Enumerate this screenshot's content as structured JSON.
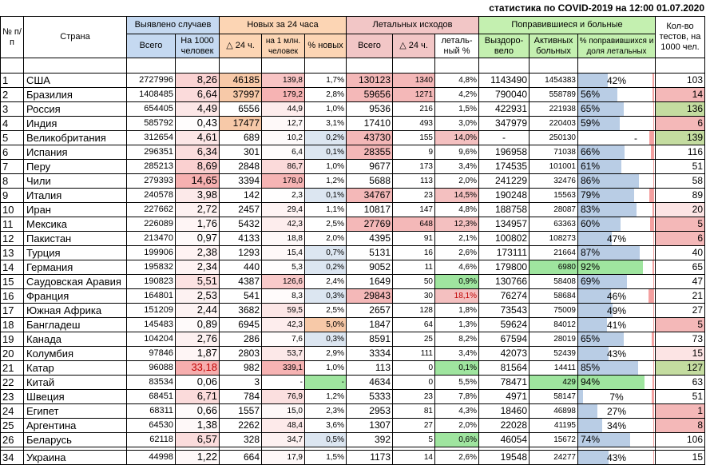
{
  "title": "статистика по COVID-2019 на 12:00 01.07.2020",
  "headers": {
    "num": "№ п/п",
    "country": "Страна",
    "detected": "Выявлено случаев",
    "new24": "Новых за 24 часа",
    "deaths": "Летальных исходов",
    "recovered_sick": "Поправившиеся и больные",
    "tests": "Кол-во тестов, на 1000 чел.",
    "total": "Всего",
    "per1000": "На 1000 человек",
    "d24": "△ 24 ч.",
    "per1m": "на 1 млн. человек",
    "pct_new": "% новых",
    "deaths_total": "Всего",
    "deaths_d24": "△ 24 ч.",
    "lethal_pct": "леталь-ный %",
    "recovered": "Выздоро-вело",
    "active": "Активных больных",
    "pct_recovered": "% поправившихся и доля летальных"
  },
  "rows": [
    {
      "n": "1",
      "country": "США",
      "total": "2727996",
      "per1000": "8,26",
      "d24": "46185",
      "per1m": "139,8",
      "pnew": "1,7%",
      "dtotal": "130123",
      "dd24": "1340",
      "lethal": "4,8%",
      "rec": "1143490",
      "active": "1454383",
      "prec": "42%",
      "prec_v": 0.42,
      "leth_v": 0.048,
      "tests": "103",
      "per1000_v": 0.56,
      "per1m_v": 0.41,
      "d24_v": 1.0,
      "tests_c": ""
    },
    {
      "n": "2",
      "country": "Бразилия",
      "total": "1408485",
      "per1000": "6,64",
      "d24": "37997",
      "per1m": "179,2",
      "pnew": "2,8%",
      "dtotal": "59656",
      "dd24": "1271",
      "lethal": "4,2%",
      "rec": "790040",
      "active": "558789",
      "prec": "56%",
      "prec_v": 0.56,
      "leth_v": 0.042,
      "tests": "14",
      "per1000_v": 0.45,
      "per1m_v": 0.53,
      "d24_v": 0.82,
      "tests_c": "#f4b8b8"
    },
    {
      "n": "3",
      "country": "Россия",
      "total": "654405",
      "per1000": "4,49",
      "d24": "6556",
      "per1m": "44,9",
      "pnew": "1,0%",
      "dtotal": "9536",
      "dd24": "216",
      "lethal": "1,5%",
      "rec": "422931",
      "active": "221938",
      "prec": "65%",
      "prec_v": 0.65,
      "leth_v": 0.015,
      "tests": "136",
      "per1000_v": 0.31,
      "per1m_v": 0.13,
      "d24_v": 0.0,
      "tests_c": "#c4dca0"
    },
    {
      "n": "4",
      "country": "Индия",
      "total": "585792",
      "per1000": "0,43",
      "d24": "17477",
      "per1m": "12,7",
      "pnew": "3,1%",
      "dtotal": "17410",
      "dd24": "493",
      "lethal": "3,0%",
      "rec": "347979",
      "active": "220403",
      "prec": "59%",
      "prec_v": 0.59,
      "leth_v": 0.03,
      "tests": "6",
      "per1000_v": 0.03,
      "per1m_v": 0.04,
      "d24_v": 0.38,
      "tests_c": "#f4b8b8"
    },
    {
      "n": "5",
      "country": "Великобритания",
      "total": "312654",
      "per1000": "4,61",
      "d24": "689",
      "per1m": "10,2",
      "pnew": "0,2%",
      "dtotal": "43730",
      "dd24": "155",
      "lethal": "14,0%",
      "rec": "-",
      "active": "250130",
      "prec": "-",
      "prec_v": 0.0,
      "leth_v": 0.14,
      "tests": "139",
      "per1000_v": 0.31,
      "per1m_v": 0.03,
      "d24_v": 0.0,
      "tests_c": "#c4dca0"
    },
    {
      "n": "6",
      "country": "Испания",
      "total": "296351",
      "per1000": "6,34",
      "d24": "301",
      "per1m": "6,4",
      "pnew": "0,1%",
      "dtotal": "28355",
      "dd24": "9",
      "lethal": "9,6%",
      "rec": "196958",
      "active": "71038",
      "prec": "66%",
      "prec_v": 0.66,
      "leth_v": 0.096,
      "tests": "116",
      "per1000_v": 0.43,
      "per1m_v": 0.02,
      "d24_v": 0.0,
      "tests_c": ""
    },
    {
      "n": "7",
      "country": "Перу",
      "total": "285213",
      "per1000": "8,69",
      "d24": "2848",
      "per1m": "86,7",
      "pnew": "1,0%",
      "dtotal": "9677",
      "dd24": "173",
      "lethal": "3,4%",
      "rec": "174535",
      "active": "101001",
      "prec": "61%",
      "prec_v": 0.61,
      "leth_v": 0.034,
      "tests": "51",
      "per1000_v": 0.59,
      "per1m_v": 0.26,
      "d24_v": 0.0,
      "tests_c": ""
    },
    {
      "n": "8",
      "country": "Чили",
      "total": "279393",
      "per1000": "14,65",
      "d24": "3394",
      "per1m": "178,0",
      "pnew": "1,2%",
      "dtotal": "5688",
      "dd24": "113",
      "lethal": "2,0%",
      "rec": "241229",
      "active": "32476",
      "prec": "86%",
      "prec_v": 0.86,
      "leth_v": 0.02,
      "tests": "58",
      "per1000_v": 1.0,
      "per1m_v": 0.53,
      "d24_v": 0.0,
      "tests_c": ""
    },
    {
      "n": "9",
      "country": "Италия",
      "total": "240578",
      "per1000": "3,98",
      "d24": "142",
      "per1m": "2,3",
      "pnew": "0,1%",
      "dtotal": "34767",
      "dd24": "23",
      "lethal": "14,5%",
      "rec": "190248",
      "active": "15563",
      "prec": "79%",
      "prec_v": 0.79,
      "leth_v": 0.145,
      "tests": "89",
      "per1000_v": 0.27,
      "per1m_v": 0.01,
      "d24_v": 0.0,
      "tests_c": ""
    },
    {
      "n": "10",
      "country": "Иран",
      "total": "227662",
      "per1000": "2,72",
      "d24": "2457",
      "per1m": "29,4",
      "pnew": "1,1%",
      "dtotal": "10817",
      "dd24": "147",
      "lethal": "4,8%",
      "rec": "188758",
      "active": "28087",
      "prec": "83%",
      "prec_v": 0.83,
      "leth_v": 0.048,
      "tests": "20",
      "per1000_v": 0.19,
      "per1m_v": 0.09,
      "d24_v": 0.0,
      "tests_c": "#fce4e4"
    },
    {
      "n": "11",
      "country": "Мексика",
      "total": "226089",
      "per1000": "1,76",
      "d24": "5432",
      "per1m": "42,3",
      "pnew": "2,5%",
      "dtotal": "27769",
      "dd24": "648",
      "lethal": "12,3%",
      "rec": "134957",
      "active": "63363",
      "prec": "60%",
      "prec_v": 0.6,
      "leth_v": 0.123,
      "tests": "5",
      "per1000_v": 0.12,
      "per1m_v": 0.13,
      "d24_v": 0.0,
      "tests_c": "#f4b8b8"
    },
    {
      "n": "12",
      "country": "Пакистан",
      "total": "213470",
      "per1000": "0,97",
      "d24": "4133",
      "per1m": "18,8",
      "pnew": "2,0%",
      "dtotal": "4395",
      "dd24": "91",
      "lethal": "2,1%",
      "rec": "100802",
      "active": "108273",
      "prec": "47%",
      "prec_v": 0.47,
      "leth_v": 0.021,
      "tests": "6",
      "per1000_v": 0.07,
      "per1m_v": 0.06,
      "d24_v": 0.0,
      "tests_c": "#f4b8b8"
    },
    {
      "n": "13",
      "country": "Турция",
      "total": "199906",
      "per1000": "2,38",
      "d24": "1293",
      "per1m": "15,4",
      "pnew": "0,7%",
      "dtotal": "5131",
      "dd24": "16",
      "lethal": "2,6%",
      "rec": "173111",
      "active": "21664",
      "prec": "87%",
      "prec_v": 0.87,
      "leth_v": 0.026,
      "tests": "40",
      "per1000_v": 0.16,
      "per1m_v": 0.05,
      "d24_v": 0.0,
      "tests_c": ""
    },
    {
      "n": "14",
      "country": "Германия",
      "total": "195832",
      "per1000": "2,34",
      "d24": "440",
      "per1m": "5,3",
      "pnew": "0,2%",
      "dtotal": "9052",
      "dd24": "11",
      "lethal": "4,6%",
      "rec": "179800",
      "active": "6980",
      "prec": "92%",
      "prec_v": 0.92,
      "leth_v": 0.046,
      "tests": "65",
      "per1000_v": 0.16,
      "per1m_v": 0.02,
      "d24_v": 0.0,
      "tests_c": ""
    },
    {
      "n": "15",
      "country": "Саудовская Аравия",
      "total": "190823",
      "per1000": "5,51",
      "d24": "4387",
      "per1m": "126,6",
      "pnew": "2,4%",
      "dtotal": "1649",
      "dd24": "50",
      "lethal": "0,9%",
      "rec": "130766",
      "active": "58408",
      "prec": "69%",
      "prec_v": 0.69,
      "leth_v": 0.009,
      "tests": "47",
      "per1000_v": 0.38,
      "per1m_v": 0.37,
      "d24_v": 0.0,
      "tests_c": ""
    },
    {
      "n": "16",
      "country": "Франция",
      "total": "164801",
      "per1000": "2,53",
      "d24": "541",
      "per1m": "8,3",
      "pnew": "0,3%",
      "dtotal": "29843",
      "dd24": "30",
      "lethal": "18,1%",
      "rec": "76274",
      "active": "58684",
      "prec": "46%",
      "prec_v": 0.46,
      "leth_v": 0.181,
      "tests": "21",
      "per1000_v": 0.17,
      "per1m_v": 0.02,
      "d24_v": 0.0,
      "tests_c": ""
    },
    {
      "n": "17",
      "country": "Южная Африка",
      "total": "151209",
      "per1000": "2,44",
      "d24": "3682",
      "per1m": "59,5",
      "pnew": "2,5%",
      "dtotal": "2657",
      "dd24": "128",
      "lethal": "1,8%",
      "rec": "73543",
      "active": "75009",
      "prec": "49%",
      "prec_v": 0.49,
      "leth_v": 0.018,
      "tests": "27",
      "per1000_v": 0.17,
      "per1m_v": 0.18,
      "d24_v": 0.0,
      "tests_c": ""
    },
    {
      "n": "18",
      "country": "Бангладеш",
      "total": "145483",
      "per1000": "0,89",
      "d24": "6945",
      "per1m": "42,3",
      "pnew": "5,0%",
      "dtotal": "1847",
      "dd24": "64",
      "lethal": "1,3%",
      "rec": "59624",
      "active": "84012",
      "prec": "41%",
      "prec_v": 0.41,
      "leth_v": 0.013,
      "tests": "5",
      "per1000_v": 0.06,
      "per1m_v": 0.13,
      "d24_v": 0.0,
      "tests_c": "#f4b8b8"
    },
    {
      "n": "19",
      "country": "Канада",
      "total": "104204",
      "per1000": "2,76",
      "d24": "286",
      "per1m": "7,6",
      "pnew": "0,3%",
      "dtotal": "8591",
      "dd24": "25",
      "lethal": "8,2%",
      "rec": "67594",
      "active": "28019",
      "prec": "65%",
      "prec_v": 0.65,
      "leth_v": 0.082,
      "tests": "73",
      "per1000_v": 0.19,
      "per1m_v": 0.02,
      "d24_v": 0.0,
      "tests_c": ""
    },
    {
      "n": "20",
      "country": "Колумбия",
      "total": "97846",
      "per1000": "1,87",
      "d24": "2803",
      "per1m": "53,7",
      "pnew": "2,9%",
      "dtotal": "3334",
      "dd24": "111",
      "lethal": "3,4%",
      "rec": "42073",
      "active": "52439",
      "prec": "43%",
      "prec_v": 0.43,
      "leth_v": 0.034,
      "tests": "15",
      "per1000_v": 0.13,
      "per1m_v": 0.16,
      "d24_v": 0.0,
      "tests_c": "#fce4e4"
    },
    {
      "n": "21",
      "country": "Катар",
      "total": "96088",
      "per1000": "33,18",
      "d24": "982",
      "per1m": "339,1",
      "pnew": "1,0%",
      "dtotal": "113",
      "dd24": "0",
      "lethal": "0,1%",
      "rec": "81564",
      "active": "14411",
      "prec": "85%",
      "prec_v": 0.85,
      "leth_v": 0.001,
      "tests": "127",
      "per1000_v": 1.0,
      "per1m_v": 1.0,
      "d24_v": 0.0,
      "tests_c": "#c4dca0"
    },
    {
      "n": "22",
      "country": "Китай",
      "total": "83534",
      "per1000": "0,06",
      "d24": "3",
      "per1m": "-",
      "pnew": "-",
      "dtotal": "4634",
      "dd24": "0",
      "lethal": "5,5%",
      "rec": "78471",
      "active": "429",
      "prec": "94%",
      "prec_v": 0.94,
      "leth_v": 0.055,
      "tests": "63",
      "per1000_v": 0.0,
      "per1m_v": 0.0,
      "d24_v": 0.0,
      "tests_c": ""
    },
    {
      "n": "23",
      "country": "Швеция",
      "total": "68451",
      "per1000": "6,71",
      "d24": "784",
      "per1m": "76,9",
      "pnew": "1,2%",
      "dtotal": "5333",
      "dd24": "23",
      "lethal": "7,8%",
      "rec": "4971",
      "active": "58147",
      "prec": "7%",
      "prec_v": 0.07,
      "leth_v": 0.078,
      "tests": "51",
      "per1000_v": 0.46,
      "per1m_v": 0.23,
      "d24_v": 0.0,
      "tests_c": ""
    },
    {
      "n": "24",
      "country": "Египет",
      "total": "68311",
      "per1000": "0,66",
      "d24": "1557",
      "per1m": "15,0",
      "pnew": "2,3%",
      "dtotal": "2953",
      "dd24": "81",
      "lethal": "4,3%",
      "rec": "18460",
      "active": "46898",
      "prec": "27%",
      "prec_v": 0.27,
      "leth_v": 0.043,
      "tests": "1",
      "per1000_v": 0.05,
      "per1m_v": 0.04,
      "d24_v": 0.0,
      "tests_c": "#f4b8b8"
    },
    {
      "n": "25",
      "country": "Аргентина",
      "total": "64530",
      "per1000": "1,38",
      "d24": "2262",
      "per1m": "48,4",
      "pnew": "3,6%",
      "dtotal": "1307",
      "dd24": "27",
      "lethal": "2,0%",
      "rec": "22028",
      "active": "41195",
      "prec": "34%",
      "prec_v": 0.34,
      "leth_v": 0.02,
      "tests": "8",
      "per1000_v": 0.09,
      "per1m_v": 0.14,
      "d24_v": 0.0,
      "tests_c": "#f4b8b8"
    },
    {
      "n": "26",
      "country": "Беларусь",
      "total": "62118",
      "per1000": "6,57",
      "d24": "328",
      "per1m": "34,7",
      "pnew": "0,5%",
      "dtotal": "392",
      "dd24": "5",
      "lethal": "0,6%",
      "rec": "46054",
      "active": "15672",
      "prec": "74%",
      "prec_v": 0.74,
      "leth_v": 0.006,
      "tests": "106",
      "per1000_v": 0.45,
      "per1m_v": 0.1,
      "d24_v": 0.0,
      "tests_c": ""
    }
  ],
  "ukraine": {
    "n": "34",
    "country": "Украина",
    "total": "44998",
    "per1000": "1,22",
    "d24": "664",
    "per1m": "17,9",
    "pnew": "1,5%",
    "dtotal": "1173",
    "dd24": "14",
    "lethal": "2,6%",
    "rec": "19548",
    "active": "24277",
    "prec": "43%",
    "prec_v": 0.43,
    "leth_v": 0.026,
    "tests": "15",
    "per1000_v": 0.08,
    "per1m_v": 0.05,
    "d24_v": 0.0,
    "tests_c": ""
  },
  "colors": {
    "blue_header": "#c5d9f1",
    "orange_header": "#fcd5b4",
    "red_header": "#f2c6c6",
    "green_header": "#c4f0b0",
    "green_cell": "#9fe59f",
    "red_cell": "#f4a0a0",
    "orange_cell": "#f7c9a8",
    "blue_bar": "#b9cde5"
  }
}
